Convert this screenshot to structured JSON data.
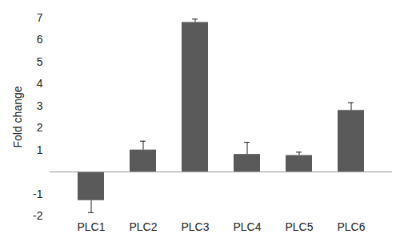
{
  "chart_data": {
    "type": "bar",
    "y_label": "Fold change",
    "categories": [
      "PLC1",
      "PLC2",
      "PLC3",
      "PLC4",
      "PLC5",
      "PLC6"
    ],
    "values": [
      -1.3,
      1.0,
      6.8,
      0.8,
      0.75,
      2.8
    ],
    "errors": [
      0.55,
      0.4,
      0.15,
      0.55,
      0.15,
      0.35
    ],
    "color": "#5a5a5a",
    "ylim": [
      -2,
      7
    ],
    "yticks": [
      -2,
      -1,
      1,
      2,
      3,
      4,
      5,
      6,
      7
    ],
    "grid": false
  }
}
